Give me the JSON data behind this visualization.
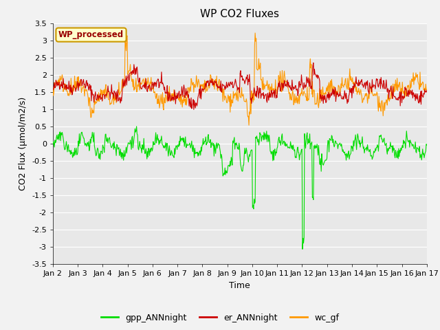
{
  "title": "WP CO2 Fluxes",
  "xlabel": "Time",
  "ylabel": "CO2 Flux (μmol/m2/s)",
  "ylim": [
    -3.5,
    3.5
  ],
  "yticks": [
    -3.5,
    -3.0,
    -2.5,
    -2.0,
    -1.5,
    -1.0,
    -0.5,
    0.0,
    0.5,
    1.0,
    1.5,
    2.0,
    2.5,
    3.0,
    3.5
  ],
  "xlim": [
    0,
    15
  ],
  "xtick_positions": [
    0,
    1,
    2,
    3,
    4,
    5,
    6,
    7,
    8,
    9,
    10,
    11,
    12,
    13,
    14,
    15
  ],
  "xtick_labels": [
    "Jan 2",
    "Jan 3",
    "Jan 4",
    "Jan 5",
    "Jan 6",
    "Jan 7",
    "Jan 8",
    "Jan 9",
    "Jan 10",
    "Jan 11",
    "Jan 12",
    "Jan 13",
    "Jan 14",
    "Jan 15",
    "Jan 16",
    "Jan 17"
  ],
  "color_er": "#cc0000",
  "color_wc": "#ff9900",
  "color_gpp": "#00dd00",
  "lw": 0.8,
  "plot_bg_color": "#e8e8e8",
  "fig_bg_color": "#f2f2f2",
  "legend_box_text": "WP_processed",
  "legend_box_facecolor": "#ffffcc",
  "legend_box_edgecolor": "#cc9900",
  "legend_box_text_color": "#990000",
  "legend_labels": [
    "gpp_ANNnight",
    "er_ANNnight",
    "wc_gf"
  ],
  "legend_colors": [
    "#00dd00",
    "#cc0000",
    "#ff9900"
  ],
  "title_fontsize": 11,
  "label_fontsize": 9,
  "tick_fontsize": 8,
  "legend_fontsize": 9,
  "n_days": 15,
  "pts_per_day": 48,
  "seed": 42
}
